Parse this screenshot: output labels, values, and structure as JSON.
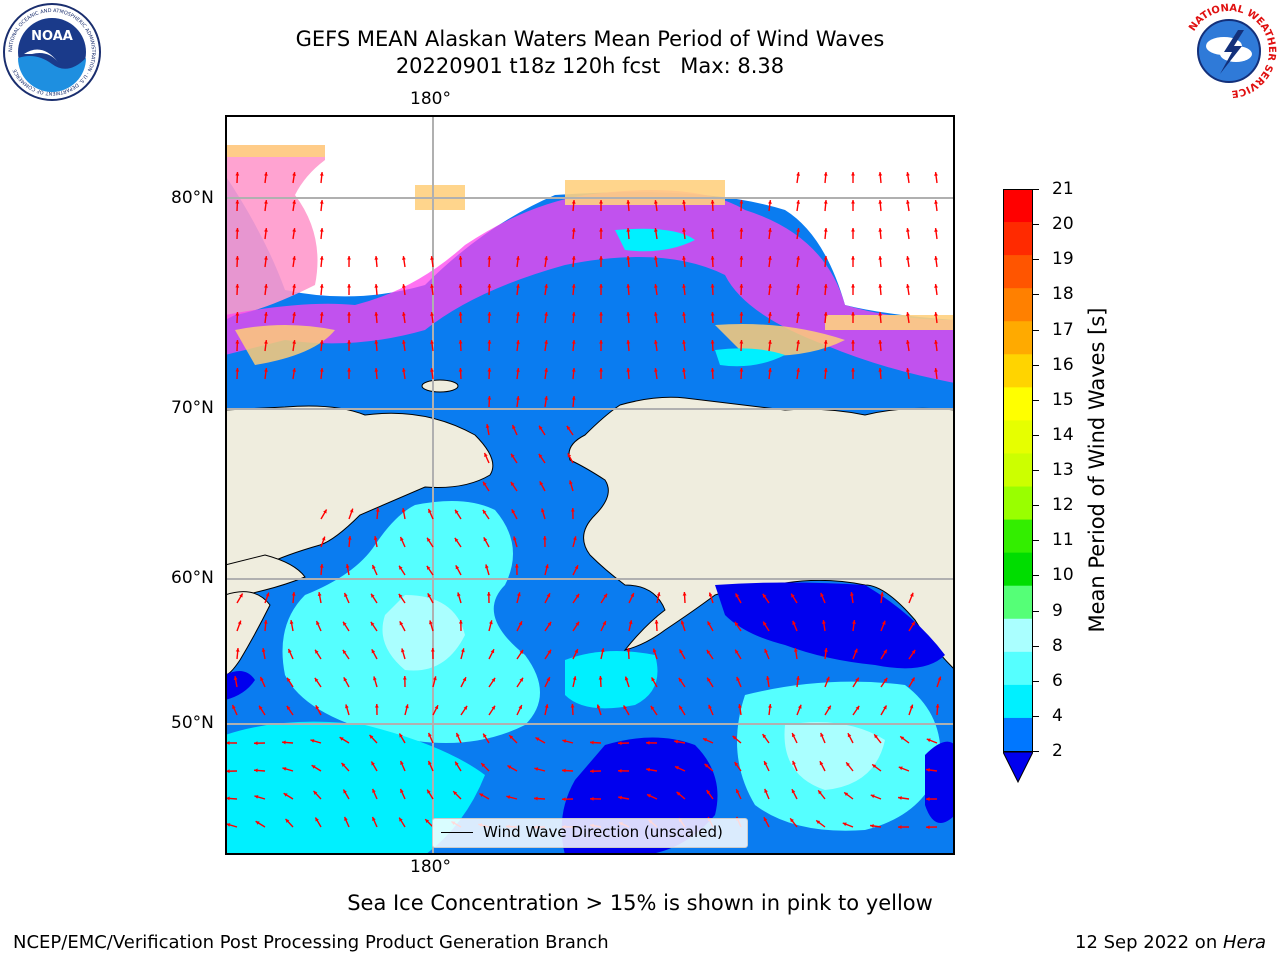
{
  "header": {
    "title_line1": "GEFS MEAN Alaskan Waters Mean Period of Wind Waves",
    "title_line2": "20220901 t18z 120h fcst   Max: 8.38"
  },
  "logos": {
    "noaa_text": "NOAA",
    "noaa_ring": "NATIONAL OCEANIC AND ATMOSPHERIC ADMINISTRATION · U.S. DEPARTMENT OF COMMERCE",
    "nws_ring": "NATIONAL WEATHER SERVICE"
  },
  "map": {
    "lon_label_top": "180°",
    "lon_label_bottom": "180°",
    "lat_labels": [
      "80°N",
      "70°N",
      "60°N",
      "50°N"
    ],
    "legend_label": "Wind Wave Direction (unscaled)",
    "arrow_color": "#ff0000",
    "land_color": "#efedde",
    "gridline_color": "#b0b0b0"
  },
  "colorbar": {
    "label": "Mean Period of Wind Waves [s]",
    "ticks": [
      "21",
      "20",
      "19",
      "18",
      "17",
      "16",
      "15",
      "14",
      "13",
      "12",
      "11",
      "10",
      "9",
      "8",
      "6",
      "4",
      "2"
    ],
    "extend": "min",
    "colors_top_to_bottom": [
      "#ff0000",
      "#ff2a00",
      "#ff5500",
      "#ff8000",
      "#ffaa00",
      "#ffd400",
      "#ffff00",
      "#e6ff00",
      "#ccff00",
      "#99ff00",
      "#33ee00",
      "#00dd00",
      "#55ff77",
      "#aaffff",
      "#55ffff",
      "#00f0ff",
      "#0077ff"
    ],
    "under_color": "#0000ee",
    "ice_colors": [
      "#ff44ee",
      "#ff99cc",
      "#ffd080",
      "#ffff66"
    ]
  },
  "caption": "Sea Ice Concentration > 15% is shown in pink to yellow",
  "footer": {
    "left": "NCEP/EMC/Verification Post Processing Product Generation Branch",
    "right_date": "12 Sep 2022 on ",
    "right_host": "Hera"
  }
}
